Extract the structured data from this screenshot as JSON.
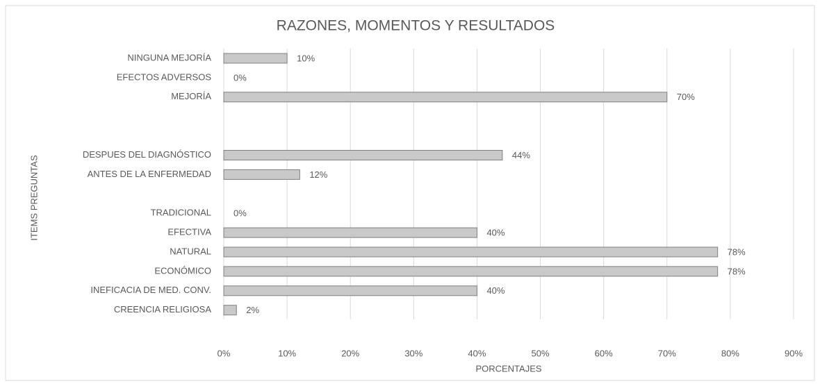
{
  "chart_data": {
    "type": "barh",
    "title": "RAZONES, MOMENTOS  Y RESULTADOS",
    "xlabel": "PORCENTAJES",
    "ylabel": "ITEMS PREGUNTAS",
    "categories": [
      "NINGUNA MEJORÍA",
      "EFECTOS ADVERSOS",
      "MEJORÍA",
      null,
      null,
      "DESPUES DEL DIAGNÓSTICO",
      "ANTES DE LA ENFERMEDAD",
      null,
      "TRADICIONAL",
      "EFECTIVA",
      "NATURAL",
      "ECONÓMICO",
      "INEFICACIA DE MED. CONV.",
      "CREENCIA RELIGIOSA"
    ],
    "values": [
      10,
      0,
      70,
      null,
      null,
      44,
      12,
      null,
      0,
      40,
      78,
      78,
      40,
      2
    ],
    "value_labels": [
      "10%",
      "0%",
      "70%",
      null,
      null,
      "44%",
      "12%",
      null,
      "0%",
      "40%",
      "78%",
      "78%",
      "40%",
      "2%"
    ],
    "color": "#c9c9c9",
    "xlim": [
      0,
      90
    ],
    "xticks": [
      {
        "value": 0,
        "label": "0%"
      },
      {
        "value": 10,
        "label": "10%"
      },
      {
        "value": 20,
        "label": "20%"
      },
      {
        "value": 30,
        "label": "30%"
      },
      {
        "value": 40,
        "label": "40%"
      },
      {
        "value": 50,
        "label": "50%"
      },
      {
        "value": 60,
        "label": "60%"
      },
      {
        "value": 70,
        "label": "70%"
      },
      {
        "value": 80,
        "label": "80%"
      },
      {
        "value": 90,
        "label": "90%"
      }
    ],
    "grid": true
  }
}
